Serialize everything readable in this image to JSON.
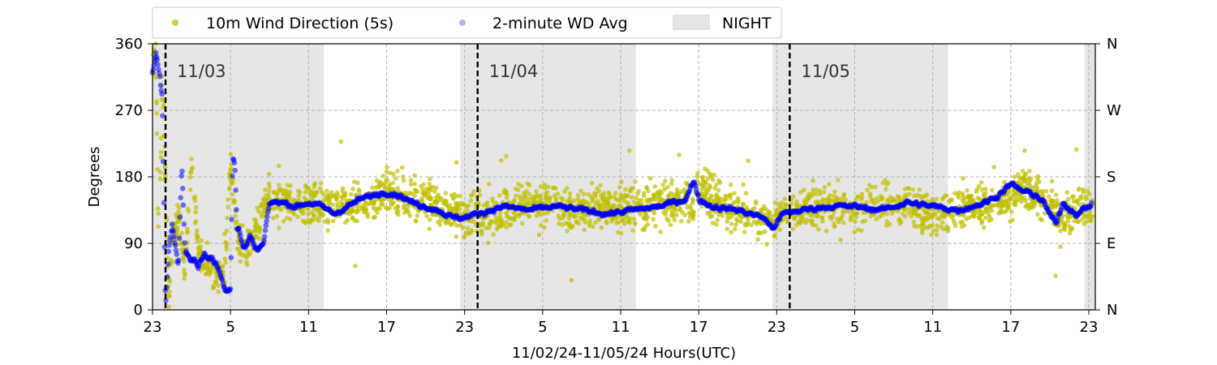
{
  "chart_data": {
    "type": "scatter",
    "title": "",
    "xlabel": "11/02/24-11/05/24  Hours(UTC)",
    "ylabel": "Degrees",
    "ylim": [
      0,
      360
    ],
    "xlim": [
      "11/02 23:00",
      "11/05 23:30"
    ],
    "yticks": [
      "0",
      "90",
      "180",
      "270",
      "360"
    ],
    "right_yticks": [
      "N",
      "E",
      "S",
      "W",
      "N"
    ],
    "xticks": [
      "23",
      "5",
      "11",
      "17",
      "23",
      "5",
      "11",
      "17",
      "23",
      "5",
      "11",
      "17",
      "23"
    ],
    "grid": true,
    "legend_placement": "top-center (above plot)",
    "legend": [
      "10m Wind Direction (5s)",
      "2-minute WD Avg",
      "NIGHT"
    ],
    "day_markers": [
      {
        "label": "11/03",
        "time": "11/03 00:00"
      },
      {
        "label": "11/04",
        "time": "11/04 00:00"
      },
      {
        "label": "11/05",
        "time": "11/05 00:00"
      }
    ],
    "night_periods": [
      {
        "start": "11/02 23:00",
        "end": "11/03 12:10"
      },
      {
        "start": "11/03 22:40",
        "end": "11/04 12:10"
      },
      {
        "start": "11/04 22:40",
        "end": "11/05 12:10"
      },
      {
        "start": "11/05 22:40",
        "end": "11/05 23:30"
      }
    ],
    "series": [
      {
        "name": "10m Wind Direction (5s)",
        "color": "#bfbf00",
        "style": "dense scatter band, about ±30 degrees around the 2-minute average",
        "x": [
          "11/02 23:00",
          "11/02 23:15",
          "11/02 23:30",
          "11/02 23:45",
          "11/03 00:15",
          "11/03 00:30",
          "11/03 01:00",
          "11/03 01:30",
          "11/03 02:00",
          "11/03 02:30",
          "11/03 03:00",
          "11/03 04:30",
          "11/03 05:00",
          "11/03 05:30",
          "11/03 06:00",
          "11/03 07:00",
          "11/03 08:00",
          "11/03 10:00",
          "11/03 12:00",
          "11/03 14:00",
          "11/03 16:00",
          "11/03 17:00",
          "11/03 19:00",
          "11/03 21:00",
          "11/03 23:00",
          "11/04 01:00",
          "11/04 03:00",
          "11/04 05:00",
          "11/04 07:00",
          "11/04 09:00",
          "11/04 11:00",
          "11/04 13:00",
          "11/04 15:00",
          "11/04 16:40",
          "11/04 17:00",
          "11/04 19:00",
          "11/04 21:00",
          "11/04 22:30",
          "11/04 23:00",
          "11/05 01:00",
          "11/05 03:00",
          "11/05 05:00",
          "11/05 07:00",
          "11/05 09:00",
          "11/05 11:00",
          "11/05 13:00",
          "11/05 15:00",
          "11/05 17:00",
          "11/05 18:00",
          "11/05 19:00",
          "11/05 20:00",
          "11/05 21:00",
          "11/05 22:00",
          "11/05 23:00"
        ],
        "y": [
          330,
          350,
          60,
          330,
          10,
          90,
          120,
          60,
          200,
          80,
          60,
          40,
          200,
          100,
          80,
          110,
          150,
          140,
          145,
          140,
          150,
          160,
          150,
          140,
          125,
          130,
          140,
          145,
          135,
          140,
          135,
          140,
          150,
          140,
          170,
          140,
          130,
          115,
          130,
          135,
          140,
          135,
          145,
          140,
          130,
          140,
          145,
          150,
          170,
          155,
          145,
          120,
          140,
          145
        ]
      },
      {
        "name": "2-minute WD Avg",
        "color": "#0000ff",
        "style": "dense connected markers",
        "x": [
          "11/02 23:00",
          "11/02 23:15",
          "11/02 23:30",
          "11/02 23:45",
          "11/03 00:00",
          "11/03 00:15",
          "11/03 00:30",
          "11/03 01:00",
          "11/03 01:15",
          "11/03 01:30",
          "11/03 02:00",
          "11/03 02:30",
          "11/03 03:00",
          "11/03 03:30",
          "11/03 04:00",
          "11/03 04:30",
          "11/03 05:00",
          "11/03 05:10",
          "11/03 05:20",
          "11/03 05:30",
          "11/03 05:40",
          "11/03 06:00",
          "11/03 06:30",
          "11/03 07:00",
          "11/03 07:30",
          "11/03 08:00",
          "11/03 09:00",
          "11/03 10:00",
          "11/03 11:00",
          "11/03 12:00",
          "11/03 13:00",
          "11/03 14:00",
          "11/03 15:00",
          "11/03 16:00",
          "11/03 17:00",
          "11/03 18:00",
          "11/03 19:00",
          "11/03 20:00",
          "11/03 21:00",
          "11/03 22:00",
          "11/03 23:00",
          "11/04 00:00",
          "11/04 02:00",
          "11/04 04:00",
          "11/04 06:00",
          "11/04 08:00",
          "11/04 10:00",
          "11/04 12:00",
          "11/04 14:00",
          "11/04 16:00",
          "11/04 16:40",
          "11/04 17:00",
          "11/04 18:00",
          "11/04 20:00",
          "11/04 22:00",
          "11/04 22:40",
          "11/04 23:30",
          "11/05 01:00",
          "11/05 03:00",
          "11/05 05:00",
          "11/05 07:00",
          "11/05 09:00",
          "11/05 11:00",
          "11/05 13:00",
          "11/05 15:00",
          "11/05 16:00",
          "11/05 17:00",
          "11/05 18:00",
          "11/05 19:00",
          "11/05 19:30",
          "11/05 20:00",
          "11/05 20:30",
          "11/05 21:00",
          "11/05 22:00",
          "11/05 23:00",
          "11/05 23:20"
        ],
        "y": [
          320,
          350,
          330,
          290,
          5,
          80,
          115,
          60,
          200,
          80,
          70,
          60,
          75,
          70,
          60,
          30,
          30,
          210,
          200,
          110,
          110,
          80,
          100,
          80,
          90,
          145,
          145,
          140,
          145,
          140,
          130,
          140,
          150,
          155,
          160,
          155,
          145,
          140,
          135,
          125,
          125,
          130,
          140,
          135,
          140,
          135,
          130,
          135,
          140,
          150,
          175,
          150,
          140,
          135,
          125,
          110,
          130,
          135,
          140,
          140,
          135,
          145,
          140,
          135,
          145,
          155,
          170,
          160,
          155,
          145,
          130,
          115,
          145,
          130,
          140,
          145
        ]
      }
    ]
  }
}
